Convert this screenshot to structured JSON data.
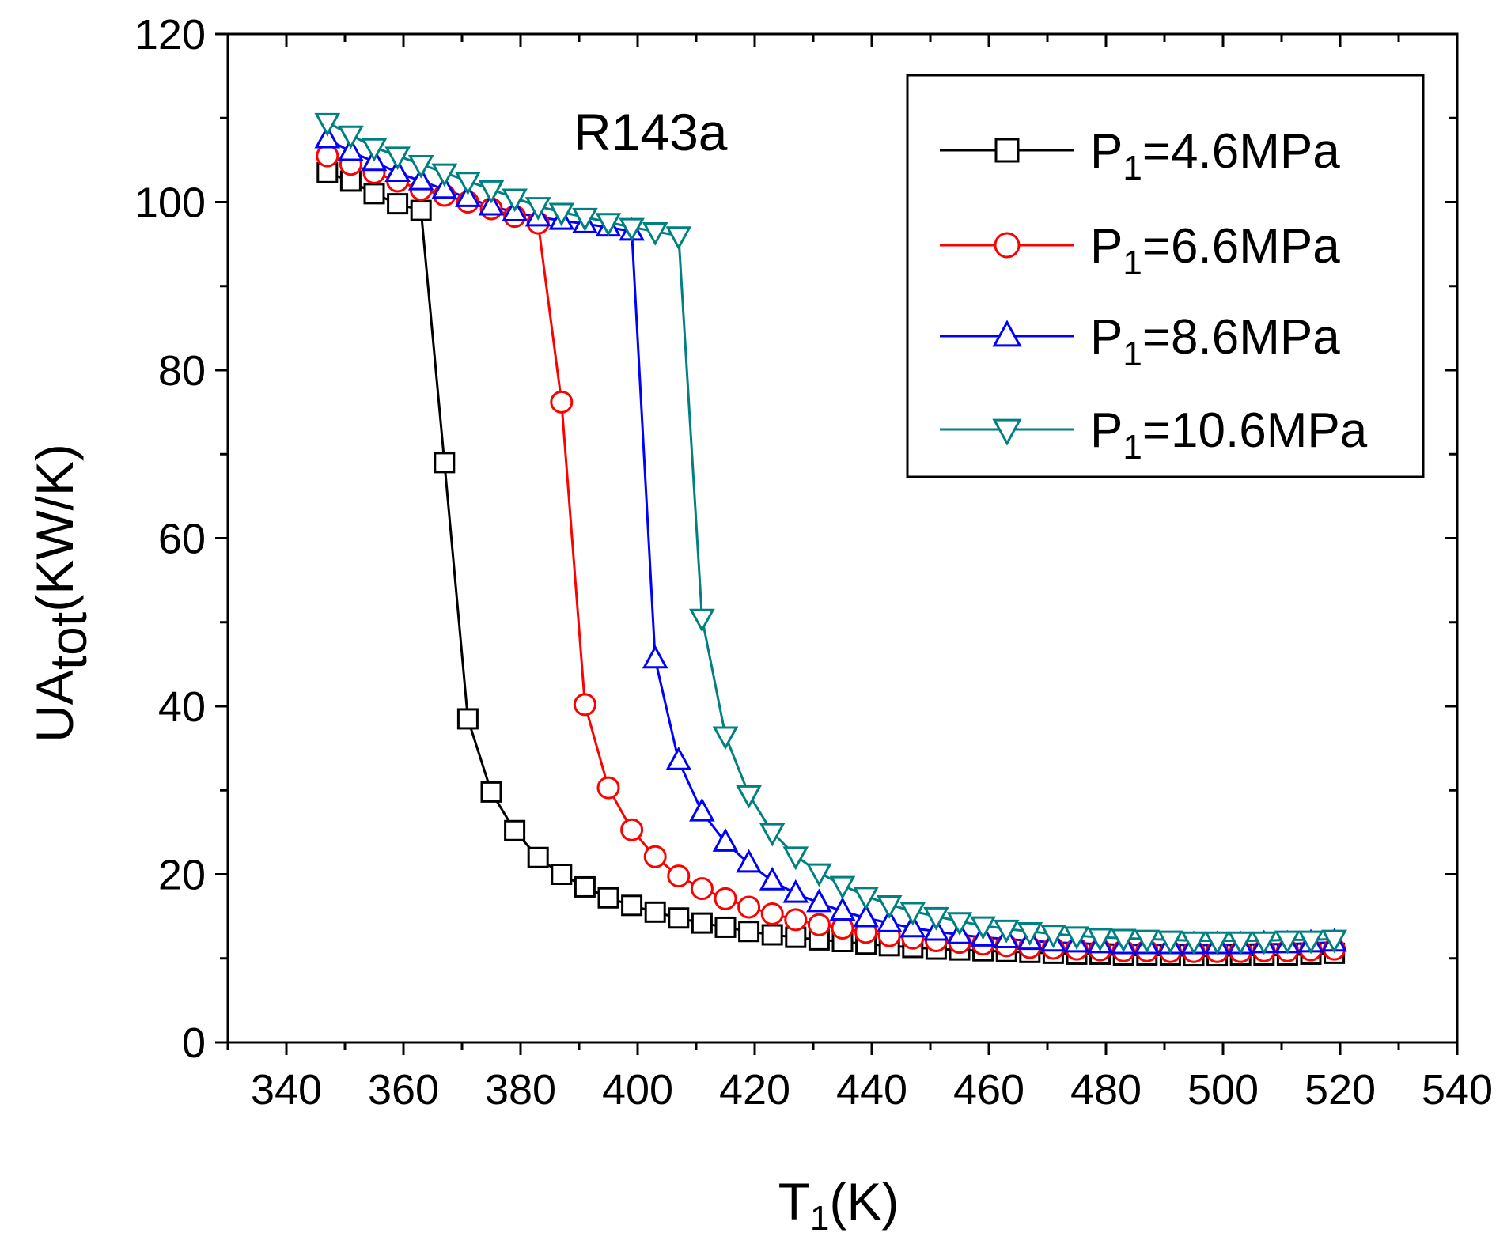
{
  "chart_data": {
    "type": "line",
    "annotation": "R143a",
    "xlabel": {
      "main": "T",
      "sub": "1",
      "tail": "(K)"
    },
    "ylabel": {
      "main": "UA",
      "sub": "tot",
      "tail": "(KW/K)"
    },
    "xlim": [
      330,
      540
    ],
    "ylim": [
      0,
      120
    ],
    "xticks": [
      340,
      360,
      380,
      400,
      420,
      440,
      460,
      480,
      500,
      520,
      540
    ],
    "yticks": [
      0,
      20,
      40,
      60,
      80,
      100,
      120
    ],
    "x": [
      347,
      351,
      355,
      359,
      363,
      367,
      371,
      375,
      379,
      383,
      387,
      391,
      395,
      399,
      403,
      407,
      411,
      415,
      419,
      423,
      427,
      431,
      435,
      439,
      443,
      447,
      451,
      455,
      459,
      463,
      467,
      471,
      475,
      479,
      483,
      487,
      491,
      495,
      499,
      503,
      507,
      511,
      515,
      519
    ],
    "legend_position": "top-right",
    "series": [
      {
        "name": "4.6MPa",
        "label_main": "P",
        "label_sub": "1",
        "label_tail": "=4.6MPa",
        "color": "#000000",
        "marker": "square",
        "values": [
          103.5,
          102.5,
          101.0,
          99.8,
          99.0,
          69.0,
          38.5,
          29.8,
          25.2,
          22.0,
          20.0,
          18.5,
          17.2,
          16.3,
          15.5,
          14.8,
          14.2,
          13.7,
          13.2,
          12.8,
          12.5,
          12.2,
          12.0,
          11.7,
          11.5,
          11.3,
          11.1,
          11.0,
          10.9,
          10.8,
          10.7,
          10.6,
          10.5,
          10.5,
          10.4,
          10.4,
          10.4,
          10.3,
          10.3,
          10.4,
          10.4,
          10.4,
          10.5,
          10.6
        ]
      },
      {
        "name": "6.6MPa",
        "label_main": "P",
        "label_sub": "1",
        "label_tail": "=6.6MPa",
        "color": "#ff0000",
        "marker": "circle",
        "values": [
          105.5,
          104.5,
          103.5,
          102.5,
          101.5,
          100.8,
          100.0,
          99.2,
          98.3,
          97.5,
          76.2,
          40.2,
          30.3,
          25.3,
          22.1,
          19.8,
          18.3,
          17.1,
          16.1,
          15.3,
          14.6,
          14.0,
          13.6,
          13.1,
          12.7,
          12.4,
          12.1,
          11.9,
          11.7,
          11.5,
          11.3,
          11.2,
          11.1,
          11.0,
          10.9,
          10.9,
          10.8,
          10.8,
          10.8,
          10.8,
          10.9,
          10.9,
          11.0,
          11.1
        ]
      },
      {
        "name": "8.6MPa",
        "label_main": "P",
        "label_sub": "1",
        "label_tail": "=8.6MPa",
        "color": "#0000ff",
        "marker": "triangle-up",
        "values": [
          107.5,
          106.0,
          104.8,
          103.5,
          102.5,
          101.5,
          100.5,
          99.5,
          98.8,
          98.2,
          97.8,
          97.4,
          97.0,
          96.5,
          45.6,
          33.5,
          27.4,
          23.8,
          21.3,
          19.2,
          17.7,
          16.6,
          15.6,
          14.8,
          14.2,
          13.6,
          13.2,
          12.8,
          12.5,
          12.3,
          12.1,
          11.9,
          11.8,
          11.7,
          11.6,
          11.6,
          11.6,
          11.6,
          11.6,
          11.6,
          11.7,
          11.7,
          11.8,
          11.9
        ]
      },
      {
        "name": "10.6MPa",
        "label_main": "P",
        "label_sub": "1",
        "label_tail": "=10.6MPa",
        "color": "#008080",
        "marker": "triangle-down",
        "values": [
          109.5,
          108.0,
          106.5,
          105.5,
          104.5,
          103.5,
          102.5,
          101.5,
          100.5,
          99.5,
          98.8,
          98.2,
          97.6,
          97.0,
          96.5,
          96.0,
          50.5,
          36.5,
          29.5,
          25.0,
          22.2,
          20.2,
          18.7,
          17.4,
          16.4,
          15.6,
          15.0,
          14.4,
          13.9,
          13.5,
          13.2,
          12.9,
          12.7,
          12.5,
          12.4,
          12.3,
          12.2,
          12.1,
          12.1,
          12.1,
          12.1,
          12.2,
          12.2,
          12.3
        ]
      }
    ]
  }
}
